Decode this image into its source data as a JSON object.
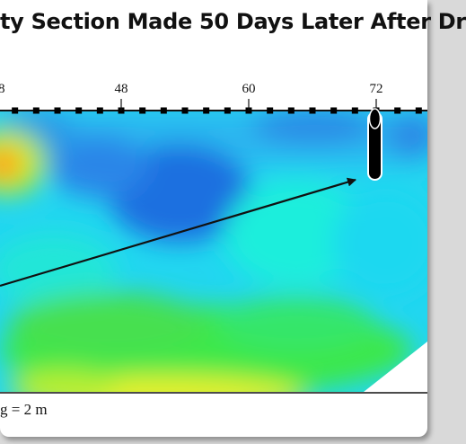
{
  "title": "ty Section Made 50 Days Later After Dr",
  "chart_data": {
    "type": "heatmap",
    "x_ticks": [
      48,
      60,
      72
    ],
    "x_unit_first_tick_partial": "8",
    "electrode_spacing_label": "g = 2 m",
    "colors": {
      "low": "#1a6fe0",
      "mid_low": "#22c9ee",
      "mid": "#19f2d0",
      "mid_high": "#3ee84a",
      "high": "#e6f02a",
      "peak": "#ff6a10"
    },
    "annotations": [
      {
        "type": "borehole",
        "x": 72
      },
      {
        "type": "arrow",
        "to_x": 70.5
      }
    ]
  }
}
